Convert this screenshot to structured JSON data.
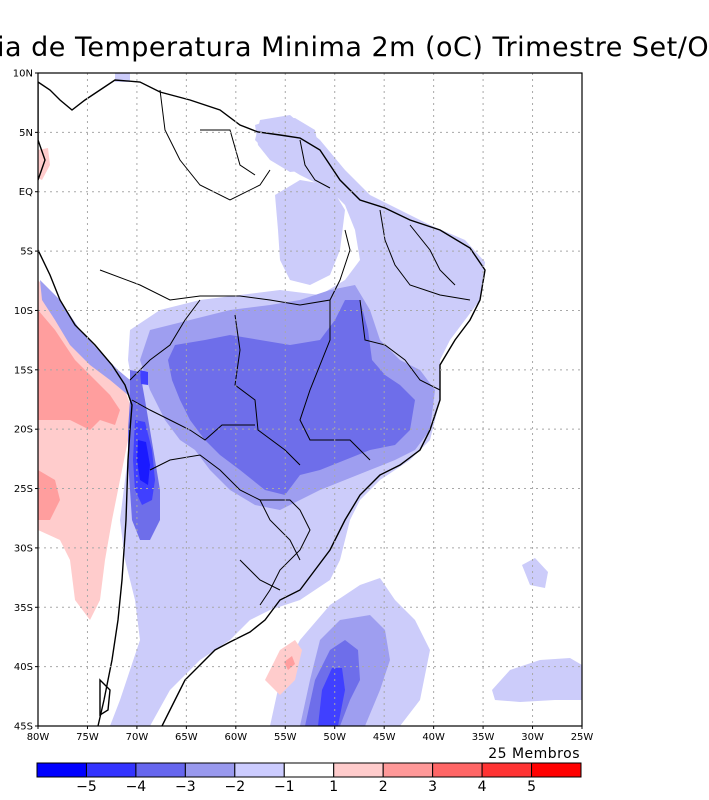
{
  "title": "ia de Temperatura Minima 2m (oC) Trimestre Set/O",
  "members_note": "25 Membros",
  "lat_labels": [
    "10N",
    "5N",
    "EQ",
    "5S",
    "10S",
    "15S",
    "20S",
    "25S",
    "30S",
    "35S",
    "40S",
    "45S"
  ],
  "lon_labels": [
    "80W",
    "75W",
    "70W",
    "65W",
    "60W",
    "55W",
    "50W",
    "45W",
    "40W",
    "35W",
    "30W",
    "25W"
  ],
  "colorbar": {
    "labels": [
      "-5",
      "-4",
      "-3",
      "-2",
      "-1",
      "1",
      "2",
      "3",
      "4",
      "5"
    ],
    "colors": [
      "#0000ff",
      "#3333ff",
      "#6666ee",
      "#9999ee",
      "#ccccff",
      "#ffffff",
      "#ffcccc",
      "#ff9999",
      "#ff6666",
      "#ff3333",
      "#ff0000"
    ]
  },
  "map_colors": {
    "c_m5": "#1a1aff",
    "c_m4": "#4040ff",
    "c_m3": "#6e6eea",
    "c_m2": "#9e9ef0",
    "c_m1": "#ccccfa",
    "c_p1": "#ffcccc",
    "c_p2": "#ff9e9e",
    "land_border": "#000000",
    "grid": "#a8a8a8"
  }
}
